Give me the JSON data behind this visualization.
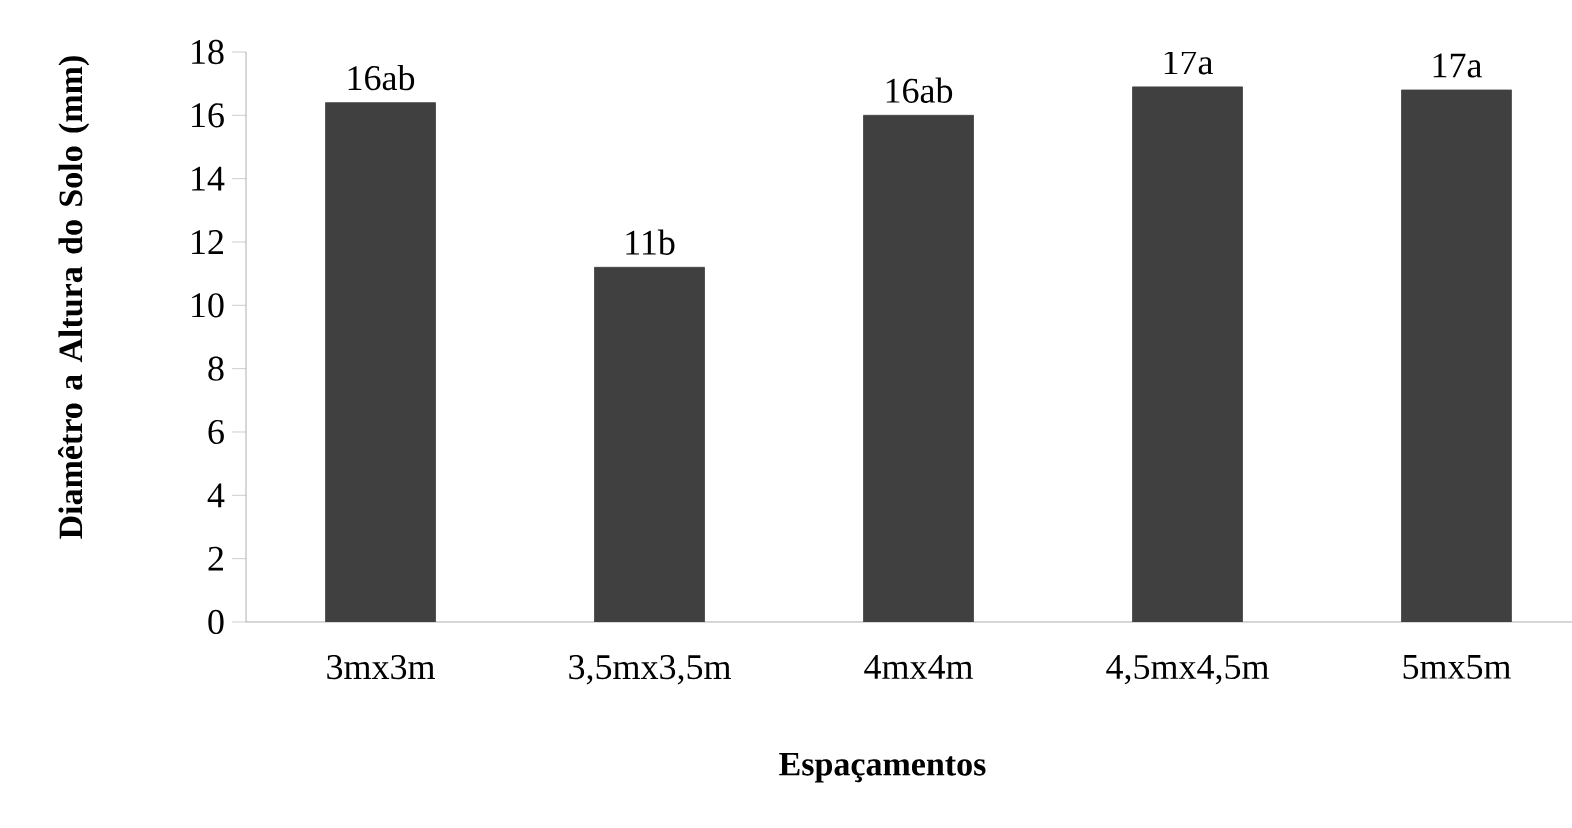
{
  "chart_data": {
    "type": "bar",
    "xlabel": "Espaçamentos",
    "ylabel": "Diamêtro a Altura do Solo (mm)",
    "categories": [
      "3mx3m",
      "3,5mx3,5m",
      "4mx4m",
      "4,5mx4,5m",
      "5mx5m"
    ],
    "values": [
      16.4,
      11.2,
      16.0,
      16.9,
      16.8
    ],
    "value_labels": [
      "16ab",
      "11b",
      "16ab",
      "17a",
      "17a"
    ],
    "color": "#404040",
    "ylim": [
      0,
      18
    ],
    "yticks": [
      0,
      2,
      4,
      6,
      8,
      10,
      12,
      14,
      16,
      18
    ],
    "grid": false
  }
}
